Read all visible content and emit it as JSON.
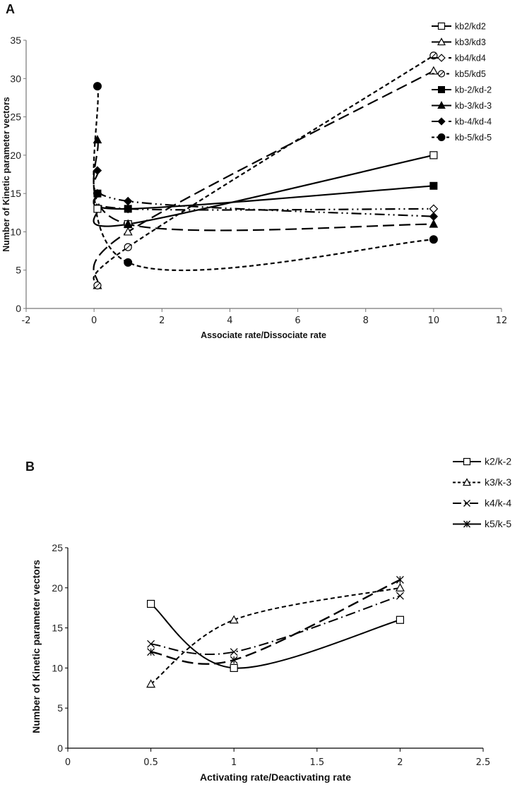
{
  "chart_data": [
    {
      "panel": "A",
      "type": "line",
      "title": "",
      "xlabel": "Associate rate/Dissociate rate",
      "ylabel": "Number of Kinetic parameter vectors",
      "xlim": [
        -2,
        12
      ],
      "ylim": [
        0,
        35
      ],
      "xticks": [
        -2,
        0,
        2,
        4,
        6,
        8,
        10,
        12
      ],
      "yticks": [
        0,
        5,
        10,
        15,
        20,
        25,
        30,
        35
      ],
      "grid": false,
      "legend_position": "top-right",
      "x": [
        0.1,
        1,
        10
      ],
      "series": [
        {
          "name": "kb2/kd2",
          "values": [
            13,
            11,
            20
          ],
          "marker": "square-open",
          "dash": "solid",
          "width": 2.2
        },
        {
          "name": "kb3/kd3",
          "values": [
            3,
            10,
            31
          ],
          "marker": "triangle-open",
          "dash": "longdash",
          "width": 2.2
        },
        {
          "name": "kb4/kd4",
          "values": [
            15,
            13,
            13
          ],
          "marker": "diamond-open",
          "dash": "dashdotdot",
          "width": 2.2
        },
        {
          "name": "kb5/kd5",
          "values": [
            3,
            8,
            33
          ],
          "marker": "circle-open",
          "dash": "dash",
          "width": 2.2
        },
        {
          "name": "kb-2/kd-2",
          "values": [
            15,
            13,
            16
          ],
          "marker": "square-filled",
          "dash": "solid",
          "width": 2.2
        },
        {
          "name": "kb-3/kd-3",
          "values": [
            22,
            11,
            11
          ],
          "marker": "triangle-filled",
          "dash": "longdash",
          "width": 2.2
        },
        {
          "name": "kb-4/kd-4",
          "values": [
            18,
            14,
            12
          ],
          "marker": "diamond-filled",
          "dash": "dashdotdot",
          "width": 2.2
        },
        {
          "name": "kb-5/kd-5",
          "values": [
            29,
            6,
            9
          ],
          "marker": "circle-filled",
          "dash": "dash",
          "width": 2.2
        }
      ]
    },
    {
      "panel": "B",
      "type": "line",
      "title": "",
      "xlabel": "Activating rate/Deactivating rate",
      "ylabel": "Number of Kinetic parameter vectors",
      "xlim": [
        0,
        2.5
      ],
      "ylim": [
        0,
        25
      ],
      "xticks": [
        "0",
        "0.5",
        "1",
        "1.5",
        "2",
        "2.5"
      ],
      "yticks": [
        0,
        5,
        10,
        15,
        20,
        25
      ],
      "grid": false,
      "legend_position": "top-right",
      "x": [
        0.5,
        1,
        2
      ],
      "series": [
        {
          "name": "k2/k-2",
          "values": [
            18,
            10,
            16
          ],
          "marker": "square-open",
          "dash": "solid",
          "width": 2
        },
        {
          "name": "k3/k-3",
          "values": [
            8,
            16,
            20
          ],
          "marker": "triangle-open",
          "dash": "dash",
          "width": 2
        },
        {
          "name": "k4/k-4",
          "values": [
            13,
            12,
            19
          ],
          "marker": "x",
          "dash": "dashdot",
          "width": 2
        },
        {
          "name": "k5/k-5",
          "values": [
            12,
            11,
            21
          ],
          "marker": "star",
          "dash": "longdash",
          "width": 2.4
        }
      ]
    }
  ]
}
